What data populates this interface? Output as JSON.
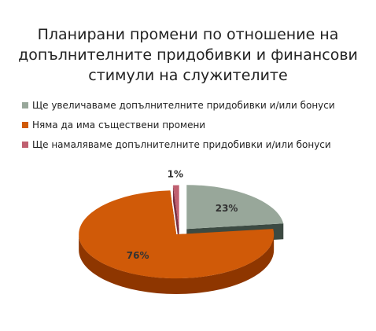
{
  "chart_data": {
    "type": "pie",
    "title_lines": [
      "Планирани промени по отношение на",
      "допълнителните придобивки и финансови",
      "стимули на служителите"
    ],
    "categories": [
      "Ще увеличаваме допълнителните придобивки и/или бонуси",
      "Няма да има съществени промени",
      "Ще намаляваме допълнителните придобивки и/или бонуси"
    ],
    "values": [
      23,
      76,
      1
    ],
    "data_labels": [
      "23%",
      "76%",
      "1%"
    ],
    "colors": [
      "#98a79a",
      "#d05a08",
      "#c06070"
    ],
    "side_colors": [
      "#3c4a42",
      "#8e3600",
      "#7a3040"
    ],
    "legend_position": "top-left",
    "exploded": true,
    "three_d": true
  }
}
